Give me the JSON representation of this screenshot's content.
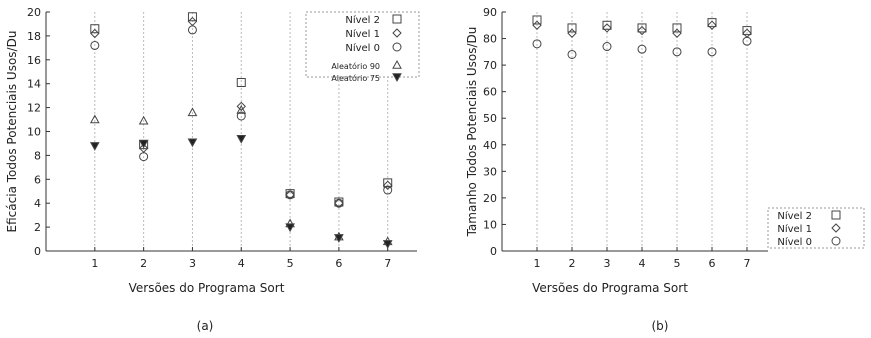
{
  "chart_data": [
    {
      "type": "scatter",
      "caption": "(a)",
      "xlabel": "Versões do Programa Sort",
      "ylabel": "Eficácia Todos Potenciais Usos/Du",
      "x": [
        1,
        2,
        3,
        4,
        5,
        6,
        7
      ],
      "xlim": [
        0,
        7.6
      ],
      "ylim": [
        0,
        20
      ],
      "yticks": [
        0,
        2,
        4,
        6,
        8,
        10,
        12,
        14,
        16,
        18,
        20
      ],
      "vertical_gridlines": true,
      "legend_position": "top-right",
      "series": [
        {
          "name": "Nível 2",
          "marker": "square",
          "values": [
            18.6,
            8.9,
            19.6,
            14.1,
            4.8,
            4.1,
            5.7
          ]
        },
        {
          "name": "Nível 1",
          "marker": "diamond",
          "values": [
            18.2,
            8.6,
            19.2,
            12.1,
            4.7,
            4.0,
            5.5
          ]
        },
        {
          "name": "Nível 0",
          "marker": "circle",
          "values": [
            17.2,
            7.9,
            18.5,
            11.3,
            4.7,
            4.0,
            5.1
          ]
        },
        {
          "name": "Aleatório 90",
          "marker": "triangle",
          "values": [
            11.0,
            10.9,
            11.6,
            11.8,
            2.3,
            1.2,
            0.8
          ]
        },
        {
          "name": "Aleatório 75",
          "marker": "triangle-down-filled",
          "values": [
            8.8,
            9.0,
            9.1,
            9.4,
            2.0,
            1.1,
            0.6
          ]
        }
      ]
    },
    {
      "type": "scatter",
      "caption": "(b)",
      "xlabel": "Versões do Programa Sort",
      "ylabel": "Tamanho Todos Potenciais Usos/Du",
      "x": [
        1,
        2,
        3,
        4,
        5,
        6,
        7
      ],
      "xlim": [
        0,
        7.6
      ],
      "ylim": [
        0,
        90
      ],
      "yticks": [
        0,
        10,
        20,
        30,
        40,
        50,
        60,
        70,
        80,
        90
      ],
      "vertical_gridlines": true,
      "legend_position": "bottom-right",
      "series": [
        {
          "name": "Nível 2",
          "marker": "square",
          "values": [
            87,
            84,
            85,
            84,
            84,
            86,
            83
          ]
        },
        {
          "name": "Nível 1",
          "marker": "diamond",
          "values": [
            85,
            82,
            84,
            83,
            82,
            85,
            82
          ]
        },
        {
          "name": "Nível 0",
          "marker": "circle",
          "values": [
            78,
            74,
            77,
            76,
            75,
            75,
            79
          ]
        }
      ]
    }
  ]
}
